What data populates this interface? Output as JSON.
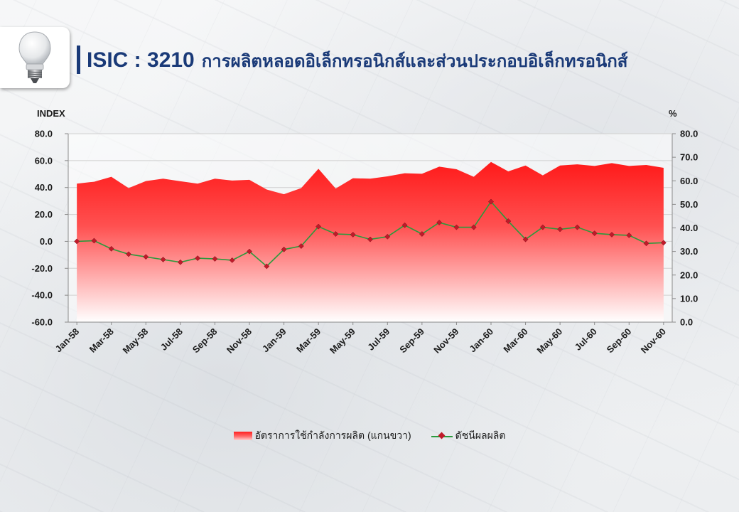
{
  "header": {
    "code": "ISIC : 3210",
    "title": "การผลิตหลอดอิเล็กทรอนิกส์และส่วนประกอบอิเล็กทรอนิกส์",
    "icon": "light-bulb-icon"
  },
  "axis_units": {
    "left": "INDEX",
    "right": "%"
  },
  "legend": {
    "area_label": "อัตราการใช้กำลังการผลิต (แกนขวา)",
    "line_label": "ดัชนีผลผลิต"
  },
  "colors": {
    "area_top": "#ff1a1a",
    "area_bottom": "#ffffff",
    "line": "#2a9a3c",
    "marker": "#c01a2a",
    "grid": "#d0d0d0"
  },
  "chart_data": {
    "type": "line",
    "x": [
      "Jan-58",
      "Feb-58",
      "Mar-58",
      "Apr-58",
      "May-58",
      "Jun-58",
      "Jul-58",
      "Aug-58",
      "Sep-58",
      "Oct-58",
      "Nov-58",
      "Dec-58",
      "Jan-59",
      "Feb-59",
      "Mar-59",
      "Apr-59",
      "May-59",
      "Jun-59",
      "Jul-59",
      "Aug-59",
      "Sep-59",
      "Oct-59",
      "Nov-59",
      "Dec-59",
      "Jan-60",
      "Feb-60",
      "Mar-60",
      "Apr-60",
      "May-60",
      "Jun-60",
      "Jul-60",
      "Aug-60",
      "Sep-60",
      "Oct-60",
      "Nov-60"
    ],
    "tick_labels": [
      "Jan-58",
      "Mar-58",
      "May-58",
      "Jul-58",
      "Sep-58",
      "Nov-58",
      "Jan-59",
      "Mar-59",
      "May-59",
      "Jul-59",
      "Sep-59",
      "Nov-59",
      "Jan-60",
      "Mar-60",
      "May-60",
      "Jul-60",
      "Sep-60",
      "Nov-60"
    ],
    "series": [
      {
        "name": "อัตราการใช้กำลังการผลิต (แกนขวา)",
        "axis": "right",
        "type": "area",
        "values": [
          58.8,
          59.6,
          61.7,
          56.9,
          59.9,
          60.9,
          59.8,
          58.8,
          60.9,
          60.1,
          60.4,
          56.3,
          54.3,
          56.9,
          65.1,
          56.7,
          61.1,
          60.9,
          61.9,
          63.2,
          63.0,
          66.0,
          64.9,
          61.7,
          68.0,
          64.0,
          66.5,
          62.3,
          66.5,
          67.0,
          66.3,
          67.5,
          66.3,
          66.7,
          65.5
        ]
      },
      {
        "name": "ดัชนีผลผลิต",
        "axis": "left",
        "type": "line",
        "values": [
          0.0,
          0.5,
          -5.5,
          -9.5,
          -11.5,
          -13.5,
          -15.5,
          -12.5,
          -13.0,
          -14.0,
          -7.5,
          -18.5,
          -6.0,
          -3.5,
          11.0,
          5.5,
          5.0,
          1.5,
          3.5,
          12.0,
          5.5,
          14.0,
          10.5,
          10.5,
          29.5,
          15.0,
          1.5,
          10.5,
          9.0,
          10.5,
          6.0,
          5.0,
          4.5,
          -1.5,
          -1.0
        ]
      }
    ],
    "y_left": {
      "ticks": [
        "80.0",
        "60.0",
        "40.0",
        "20.0",
        "0.0",
        "-20.0",
        "-40.0",
        "-60.0"
      ],
      "ylim": [
        -60,
        80
      ]
    },
    "y_right": {
      "ticks": [
        "80.0",
        "70.0",
        "60.0",
        "50.0",
        "40.0",
        "30.0",
        "20.0",
        "10.0",
        "0.0"
      ],
      "ylim": [
        0,
        80
      ]
    },
    "grid": true,
    "legend_position": "bottom"
  }
}
